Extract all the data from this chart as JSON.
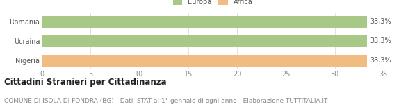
{
  "categories": [
    "Romania",
    "Ucraina",
    "Nigeria"
  ],
  "values": [
    33.3,
    33.3,
    33.3
  ],
  "bar_colors": [
    "#a8c887",
    "#a8c887",
    "#f0bc82"
  ],
  "legend_labels": [
    "Europa",
    "Africa"
  ],
  "legend_colors": [
    "#a8c887",
    "#f0bc82"
  ],
  "bar_labels": [
    "33,3%",
    "33,3%",
    "33,3%"
  ],
  "xlim": [
    0,
    35
  ],
  "xticks": [
    0,
    5,
    10,
    15,
    20,
    25,
    30,
    35
  ],
  "title": "Cittadini Stranieri per Cittadinanza",
  "subtitle": "COMUNE DI ISOLA DI FONDRA (BG) - Dati ISTAT al 1° gennaio di ogni anno - Elaborazione TUTTITALIA.IT",
  "title_fontsize": 8.5,
  "subtitle_fontsize": 6.5,
  "label_fontsize": 7,
  "tick_fontsize": 7,
  "background_color": "#ffffff",
  "bar_height": 0.6
}
